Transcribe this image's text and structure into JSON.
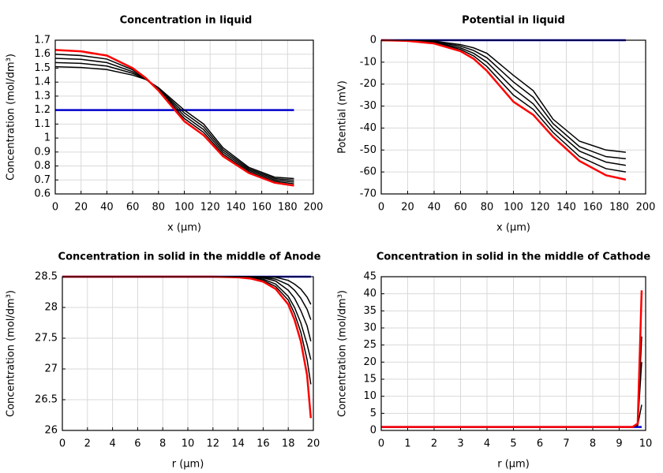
{
  "chart_data": [
    {
      "type": "line",
      "title": "Concentration in liquid",
      "xlabel": "x (μm)",
      "ylabel": "Concentration (mol/dm³)",
      "x": [
        0,
        20,
        40,
        60,
        70,
        80,
        100,
        115,
        130,
        150,
        170,
        185
      ],
      "xlim": [
        0,
        200
      ],
      "xticks": [
        0,
        20,
        40,
        60,
        80,
        100,
        120,
        140,
        160,
        180,
        200
      ],
      "ylim": [
        0.6,
        1.7
      ],
      "yticks": [
        0.6,
        0.7,
        0.8,
        0.9,
        1,
        1.1,
        1.2,
        1.3,
        1.4,
        1.5,
        1.6,
        1.7
      ],
      "grid": true,
      "series": [
        {
          "color": "#0000cc",
          "values": [
            1.2,
            1.2,
            1.2,
            1.2,
            1.2,
            1.2,
            1.2,
            1.2,
            1.2,
            1.2,
            1.2,
            1.2
          ]
        },
        {
          "color": "#000000",
          "values": [
            1.51,
            1.505,
            1.49,
            1.45,
            1.42,
            1.36,
            1.2,
            1.1,
            0.93,
            0.79,
            0.72,
            0.71
          ]
        },
        {
          "color": "#000000",
          "values": [
            1.54,
            1.534,
            1.515,
            1.463,
            1.423,
            1.355,
            1.18,
            1.08,
            0.915,
            0.78,
            0.71,
            0.698
          ]
        },
        {
          "color": "#000000",
          "values": [
            1.57,
            1.563,
            1.54,
            1.475,
            1.425,
            1.35,
            1.16,
            1.06,
            0.9,
            0.77,
            0.7,
            0.685
          ]
        },
        {
          "color": "#000000",
          "values": [
            1.6,
            1.59,
            1.565,
            1.488,
            1.428,
            1.345,
            1.14,
            1.04,
            0.885,
            0.76,
            0.69,
            0.673
          ]
        },
        {
          "color": "#ff0000",
          "values": [
            1.63,
            1.62,
            1.59,
            1.5,
            1.43,
            1.34,
            1.12,
            1.02,
            0.87,
            0.75,
            0.68,
            0.66
          ]
        }
      ]
    },
    {
      "type": "line",
      "title": "Potential in liquid",
      "xlabel": "x (μm)",
      "ylabel": "Potential (mV)",
      "x": [
        0,
        20,
        40,
        60,
        70,
        80,
        100,
        115,
        130,
        150,
        170,
        185
      ],
      "xlim": [
        0,
        200
      ],
      "xticks": [
        0,
        20,
        40,
        60,
        80,
        100,
        120,
        140,
        160,
        180,
        200
      ],
      "ylim": [
        -70,
        0
      ],
      "yticks": [
        -70,
        -60,
        -50,
        -40,
        -30,
        -20,
        -10,
        0
      ],
      "grid": true,
      "series": [
        {
          "color": "#0000cc",
          "values": [
            0,
            0,
            0,
            0,
            0,
            0,
            0,
            0,
            0,
            0,
            0,
            0
          ]
        },
        {
          "color": "#000000",
          "values": [
            0,
            -0.1,
            -0.4,
            -2,
            -3.5,
            -6,
            -16,
            -23,
            -36,
            -46,
            -50,
            -51
          ]
        },
        {
          "color": "#000000",
          "values": [
            0,
            -0.15,
            -0.7,
            -2.7,
            -4.7,
            -8,
            -19,
            -26,
            -38,
            -48.5,
            -53,
            -54
          ]
        },
        {
          "color": "#000000",
          "values": [
            0,
            -0.2,
            -1,
            -3.5,
            -6,
            -10,
            -22,
            -29,
            -40,
            -50.5,
            -55.5,
            -57
          ]
        },
        {
          "color": "#000000",
          "values": [
            0,
            -0.25,
            -1.2,
            -4.2,
            -7.2,
            -12,
            -25,
            -31.5,
            -42,
            -53,
            -58.5,
            -60
          ]
        },
        {
          "color": "#ff0000",
          "values": [
            0,
            -0.3,
            -1.5,
            -5,
            -8.5,
            -14,
            -28,
            -34,
            -44,
            -55,
            -61.5,
            -63.5
          ]
        }
      ]
    },
    {
      "type": "line",
      "title": "Concentration in solid in the middle of Anode",
      "xlabel": "r (μm)",
      "ylabel": "Concentration (mol/dm³)",
      "x": [
        0,
        4,
        8,
        12,
        14,
        15,
        16,
        17,
        18,
        18.5,
        19,
        19.5,
        19.8
      ],
      "xlim": [
        0,
        20
      ],
      "xticks": [
        0,
        2,
        4,
        6,
        8,
        10,
        12,
        14,
        16,
        18,
        20
      ],
      "ylim": [
        26,
        28.5
      ],
      "yticks": [
        26,
        26.5,
        27,
        27.5,
        28,
        28.5
      ],
      "grid": true,
      "series": [
        {
          "color": "#0000cc",
          "values": [
            28.5,
            28.5,
            28.5,
            28.5,
            28.5,
            28.5,
            28.5,
            28.5,
            28.5,
            28.5,
            28.5,
            28.5,
            28.5
          ]
        },
        {
          "color": "#000000",
          "values": [
            28.5,
            28.5,
            28.5,
            28.5,
            28.5,
            28.5,
            28.5,
            28.49,
            28.44,
            28.38,
            28.3,
            28.17,
            28.05
          ]
        },
        {
          "color": "#000000",
          "values": [
            28.5,
            28.5,
            28.5,
            28.5,
            28.5,
            28.5,
            28.49,
            28.46,
            28.37,
            28.28,
            28.15,
            27.97,
            27.8
          ]
        },
        {
          "color": "#000000",
          "values": [
            28.5,
            28.5,
            28.5,
            28.5,
            28.5,
            28.5,
            28.48,
            28.43,
            28.28,
            28.15,
            27.95,
            27.7,
            27.45
          ]
        },
        {
          "color": "#000000",
          "values": [
            28.5,
            28.5,
            28.5,
            28.5,
            28.5,
            28.49,
            28.46,
            28.38,
            28.18,
            28.0,
            27.75,
            27.4,
            27.15
          ]
        },
        {
          "color": "#000000",
          "values": [
            28.5,
            28.5,
            28.5,
            28.5,
            28.5,
            28.48,
            28.44,
            28.34,
            28.12,
            27.9,
            27.6,
            27.15,
            26.75
          ]
        },
        {
          "color": "#ff0000",
          "values": [
            28.5,
            28.5,
            28.5,
            28.5,
            28.49,
            28.47,
            28.42,
            28.3,
            28.05,
            27.8,
            27.45,
            26.9,
            26.2
          ]
        }
      ]
    },
    {
      "type": "line",
      "title": "Concentration in solid in the middle of Cathode",
      "xlabel": "r (μm)",
      "ylabel": "Concentration (mol/dm³)",
      "x": [
        0,
        9,
        9.5,
        9.7,
        9.85
      ],
      "xlim": [
        0,
        10
      ],
      "xticks": [
        0,
        1,
        2,
        3,
        4,
        5,
        6,
        7,
        8,
        9,
        10
      ],
      "ylim": [
        0,
        45
      ],
      "yticks": [
        0,
        5,
        10,
        15,
        20,
        25,
        30,
        35,
        40,
        45
      ],
      "grid": true,
      "series": [
        {
          "color": "#0000cc",
          "values": [
            1,
            1,
            1,
            1,
            1
          ]
        },
        {
          "color": "#000000",
          "values": [
            1,
            1,
            1,
            1.5,
            7.5
          ]
        },
        {
          "color": "#000000",
          "values": [
            1,
            1,
            1,
            1.8,
            20
          ]
        },
        {
          "color": "#000000",
          "values": [
            1,
            1,
            1,
            1.9,
            27.5
          ]
        },
        {
          "color": "#ff0000",
          "values": [
            1,
            1,
            1,
            2,
            41
          ]
        }
      ]
    }
  ]
}
